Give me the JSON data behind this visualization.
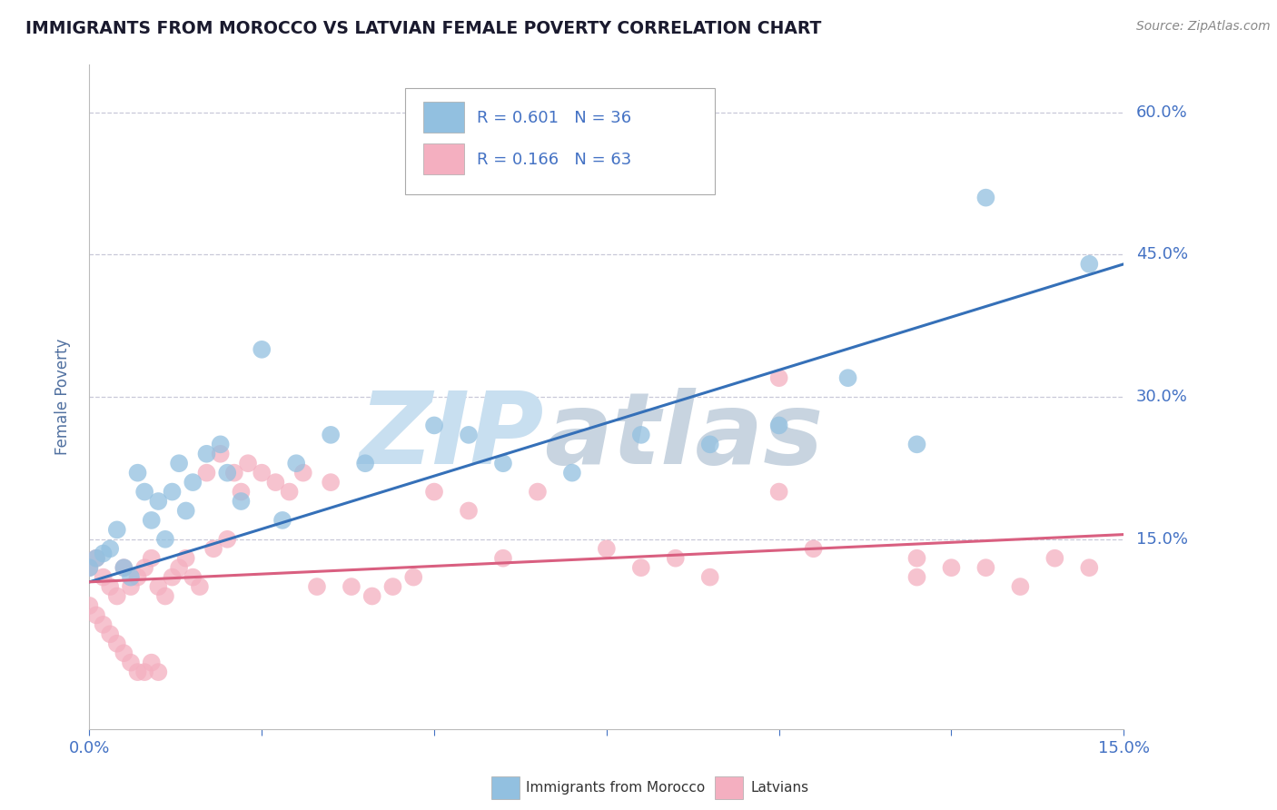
{
  "title": "IMMIGRANTS FROM MOROCCO VS LATVIAN FEMALE POVERTY CORRELATION CHART",
  "source": "Source: ZipAtlas.com",
  "ylabel": "Female Poverty",
  "xlim": [
    0.0,
    0.15
  ],
  "ylim": [
    -0.05,
    0.65
  ],
  "ytick_vals": [
    0.15,
    0.3,
    0.45,
    0.6
  ],
  "ytick_labels": [
    "15.0%",
    "30.0%",
    "45.0%",
    "60.0%"
  ],
  "xtick_vals": [
    0.0,
    0.025,
    0.05,
    0.075,
    0.1,
    0.125,
    0.15
  ],
  "xtick_edge_labels": {
    "0": "0.0%",
    "6": "15.0%"
  },
  "legend_blue_r": "R = 0.601",
  "legend_blue_n": "N = 36",
  "legend_pink_r": "R = 0.166",
  "legend_pink_n": "N = 63",
  "legend_blue_label": "Immigrants from Morocco",
  "legend_pink_label": "Latvians",
  "blue_color": "#92c0e0",
  "pink_color": "#f4afc0",
  "blue_line_color": "#3570b8",
  "pink_line_color": "#d95f80",
  "watermark_zip_color": "#c8dff0",
  "watermark_atlas_color": "#c8d4e0",
  "background_color": "#ffffff",
  "grid_color": "#c8c8d8",
  "title_color": "#1a1a2e",
  "axis_label_color": "#5070a0",
  "tick_label_color": "#4472c4",
  "legend_r_color": "#4472c4",
  "legend_n_color": "#333333",
  "blue_scatter_x": [
    0.0,
    0.001,
    0.002,
    0.003,
    0.004,
    0.005,
    0.006,
    0.007,
    0.008,
    0.009,
    0.01,
    0.011,
    0.012,
    0.013,
    0.014,
    0.015,
    0.017,
    0.019,
    0.02,
    0.022,
    0.025,
    0.028,
    0.03,
    0.035,
    0.04,
    0.05,
    0.055,
    0.06,
    0.07,
    0.08,
    0.09,
    0.1,
    0.11,
    0.12,
    0.13,
    0.145
  ],
  "blue_scatter_y": [
    0.12,
    0.13,
    0.135,
    0.14,
    0.16,
    0.12,
    0.11,
    0.22,
    0.2,
    0.17,
    0.19,
    0.15,
    0.2,
    0.23,
    0.18,
    0.21,
    0.24,
    0.25,
    0.22,
    0.19,
    0.35,
    0.17,
    0.23,
    0.26,
    0.23,
    0.27,
    0.26,
    0.23,
    0.22,
    0.26,
    0.25,
    0.27,
    0.32,
    0.25,
    0.51,
    0.44
  ],
  "pink_scatter_x": [
    0.0,
    0.0,
    0.001,
    0.001,
    0.002,
    0.002,
    0.003,
    0.003,
    0.004,
    0.004,
    0.005,
    0.005,
    0.006,
    0.006,
    0.007,
    0.007,
    0.008,
    0.008,
    0.009,
    0.009,
    0.01,
    0.01,
    0.011,
    0.012,
    0.013,
    0.014,
    0.015,
    0.016,
    0.017,
    0.018,
    0.019,
    0.02,
    0.021,
    0.022,
    0.023,
    0.025,
    0.027,
    0.029,
    0.031,
    0.033,
    0.035,
    0.038,
    0.041,
    0.044,
    0.047,
    0.05,
    0.055,
    0.065,
    0.075,
    0.08,
    0.085,
    0.09,
    0.1,
    0.105,
    0.12,
    0.125,
    0.13,
    0.135,
    0.14,
    0.145,
    0.1,
    0.06,
    0.12
  ],
  "pink_scatter_y": [
    0.12,
    0.08,
    0.13,
    0.07,
    0.11,
    0.06,
    0.1,
    0.05,
    0.09,
    0.04,
    0.12,
    0.03,
    0.1,
    0.02,
    0.11,
    0.01,
    0.12,
    0.01,
    0.13,
    0.02,
    0.1,
    0.01,
    0.09,
    0.11,
    0.12,
    0.13,
    0.11,
    0.1,
    0.22,
    0.14,
    0.24,
    0.15,
    0.22,
    0.2,
    0.23,
    0.22,
    0.21,
    0.2,
    0.22,
    0.1,
    0.21,
    0.1,
    0.09,
    0.1,
    0.11,
    0.2,
    0.18,
    0.2,
    0.14,
    0.12,
    0.13,
    0.11,
    0.2,
    0.14,
    0.13,
    0.12,
    0.12,
    0.1,
    0.13,
    0.12,
    0.32,
    0.13,
    0.11
  ],
  "blue_trend_x": [
    0.0,
    0.15
  ],
  "blue_trend_y": [
    0.105,
    0.44
  ],
  "pink_trend_x": [
    0.0,
    0.15
  ],
  "pink_trend_y": [
    0.105,
    0.155
  ]
}
